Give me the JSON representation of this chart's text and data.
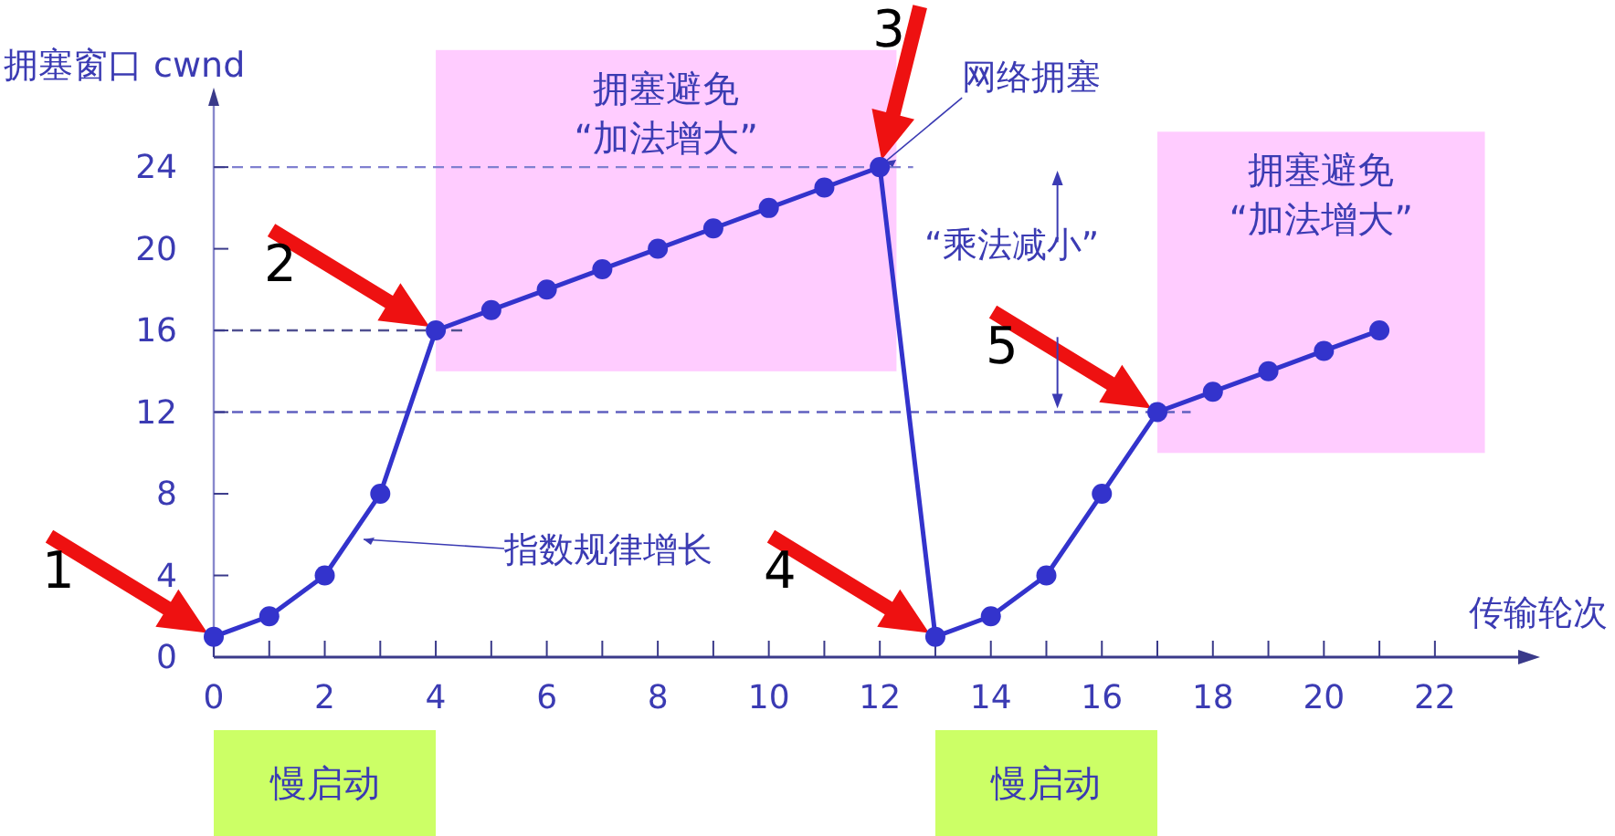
{
  "chart_data": {
    "type": "line",
    "xlabel": "传输轮次",
    "ylabel": "拥塞窗口 cwnd",
    "marker": "circle",
    "line_style": "solid",
    "grid": false,
    "legend": false,
    "xlim": [
      0,
      23.5
    ],
    "ylim": [
      0,
      27
    ],
    "xticks": [
      0,
      {
        "value": 1,
        "label": null
      },
      2,
      {
        "value": 3,
        "label": null
      },
      4,
      {
        "value": 5,
        "label": null
      },
      6,
      {
        "value": 7,
        "label": null
      },
      8,
      {
        "value": 9,
        "label": null
      },
      10,
      {
        "value": 11,
        "label": null
      },
      12,
      {
        "value": 13,
        "label": null
      },
      14,
      {
        "value": 15,
        "label": null
      },
      16,
      {
        "value": 17,
        "label": null
      },
      18,
      {
        "value": 19,
        "label": null
      },
      20,
      {
        "value": 21,
        "label": null
      },
      22
    ],
    "yticks": [
      0,
      4,
      8,
      12,
      16,
      20,
      24
    ],
    "series": [
      {
        "color": "#3333cc",
        "x": [
          0,
          1,
          2,
          3,
          4,
          5,
          6,
          7,
          8,
          9,
          10,
          11,
          12,
          13,
          14,
          15,
          16,
          17,
          18,
          19,
          20,
          21
        ],
        "values": [
          1,
          2,
          4,
          8,
          16,
          17,
          18,
          19,
          20,
          21,
          22,
          23,
          24,
          1,
          2,
          4,
          8,
          12,
          13,
          14,
          15,
          16
        ]
      }
    ],
    "ref_lines": [
      {
        "axis": "y",
        "value": 24,
        "color": "#8080d0",
        "line_style": "dashed"
      },
      {
        "axis": "y",
        "value": 16,
        "color": "#505090",
        "line_style": "dashed"
      },
      {
        "axis": "y",
        "value": 12,
        "color": "#6060c0",
        "line_style": "dashed"
      }
    ],
    "bands": [
      {
        "axis": "x",
        "from": 4,
        "to": 12.3,
        "label": "拥塞避免\n“加法增大”",
        "color": "#ffccff"
      },
      {
        "axis": "x",
        "from": 17,
        "to": 22.9,
        "label": "拥塞避免\n“加法增大”",
        "color": "#ffccff"
      }
    ],
    "annotations": [
      "慢启动",
      "慢启动",
      {
        "text": "1",
        "x": 0,
        "y": 1
      },
      {
        "text": "2",
        "x": 4,
        "y": 16
      },
      {
        "text": "3",
        "x": 12,
        "y": 24
      },
      {
        "text": "4",
        "x": 13,
        "y": 1
      },
      {
        "text": "5",
        "x": 17,
        "y": 12
      },
      {
        "text": "网络拥塞",
        "x": 12,
        "y": 24
      },
      {
        "text": "指数规律增长",
        "x": 2.6,
        "y": 5.5
      },
      "“乘法减小”"
    ]
  }
}
